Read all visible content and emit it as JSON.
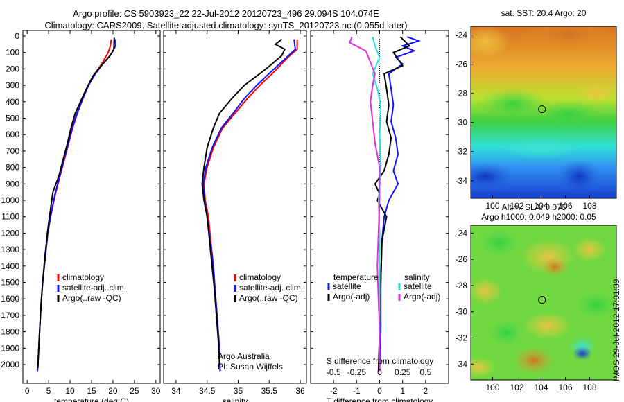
{
  "header": {
    "title_line1": "Argo profile: CS 5903923_22 22-Jul-2012 20120723_496 29.094S 104.074E",
    "title_line2": "Climatology: CARS2009. Satellite-adjusted climatology: synTS_20120723.nc (0.055d later)"
  },
  "colors": {
    "climatology": "#ff0000",
    "satellite": "#1010ff",
    "argo": "#000000",
    "salinity_satellite": "#22e0e0",
    "salinity_argo": "#e030e0"
  },
  "chart_data": [
    {
      "type": "line",
      "panel": "temperature",
      "xlabel": "temperature (deg C)",
      "ylabel": "",
      "xlim": [
        -1,
        31
      ],
      "ylim": [
        2080,
        0
      ],
      "xticks": [
        0,
        5,
        10,
        15,
        20,
        25,
        30
      ],
      "yticks": [
        0,
        100,
        200,
        300,
        400,
        500,
        600,
        700,
        800,
        900,
        1000,
        1100,
        1200,
        1300,
        1400,
        1500,
        1600,
        1700,
        1800,
        1900,
        2000
      ],
      "legend": [
        "climatology",
        "satellite-adj. clim.",
        "Argo(..raw -QC)"
      ],
      "series": [
        {
          "name": "climatology",
          "color": "#ff0000",
          "points": [
            [
              19.6,
              20
            ],
            [
              19.4,
              60
            ],
            [
              18.9,
              100
            ],
            [
              17.6,
              160
            ],
            [
              15.8,
              230
            ],
            [
              14.3,
              300
            ],
            [
              13.0,
              380
            ],
            [
              11.7,
              470
            ],
            [
              10.6,
              560
            ],
            [
              9.7,
              650
            ],
            [
              8.7,
              750
            ],
            [
              7.7,
              850
            ],
            [
              6.6,
              960
            ],
            [
              5.6,
              1080
            ],
            [
              4.8,
              1200
            ],
            [
              4.2,
              1350
            ],
            [
              3.6,
              1500
            ],
            [
              3.2,
              1650
            ],
            [
              2.9,
              1800
            ],
            [
              2.6,
              1950
            ],
            [
              2.4,
              2040
            ]
          ]
        },
        {
          "name": "satellite-adj. clim.",
          "color": "#1010ff",
          "points": [
            [
              20.5,
              20
            ],
            [
              20.6,
              60
            ],
            [
              19.6,
              110
            ],
            [
              17.6,
              170
            ],
            [
              15.8,
              235
            ],
            [
              14.3,
              300
            ],
            [
              13.0,
              380
            ],
            [
              11.6,
              470
            ],
            [
              10.5,
              560
            ],
            [
              9.6,
              650
            ],
            [
              8.6,
              750
            ],
            [
              7.6,
              850
            ],
            [
              6.5,
              960
            ],
            [
              5.6,
              1080
            ],
            [
              4.8,
              1200
            ],
            [
              4.2,
              1350
            ],
            [
              3.6,
              1500
            ],
            [
              3.2,
              1650
            ],
            [
              2.9,
              1800
            ],
            [
              2.6,
              1950
            ],
            [
              2.4,
              2040
            ]
          ]
        },
        {
          "name": "Argo(..raw -QC)",
          "color": "#000000",
          "points": [
            [
              20.3,
              10
            ],
            [
              20.2,
              80
            ],
            [
              19.3,
              120
            ],
            [
              17.3,
              180
            ],
            [
              15.4,
              240
            ],
            [
              14.0,
              310
            ],
            [
              12.6,
              390
            ],
            [
              11.2,
              470
            ],
            [
              10.2,
              560
            ],
            [
              9.4,
              650
            ],
            [
              8.4,
              750
            ],
            [
              7.4,
              850
            ],
            [
              6.0,
              950
            ],
            [
              5.3,
              1080
            ],
            [
              4.7,
              1200
            ],
            [
              4.1,
              1350
            ],
            [
              3.6,
              1500
            ],
            [
              3.2,
              1650
            ],
            [
              2.9,
              1800
            ],
            [
              2.6,
              1950
            ],
            [
              2.5,
              2020
            ]
          ]
        }
      ]
    },
    {
      "type": "line",
      "panel": "salinity",
      "xlabel": "salinity",
      "xlim": [
        33.8,
        36.1
      ],
      "ylim": [
        2080,
        0
      ],
      "xticks": [
        34,
        34.5,
        35,
        35.5,
        36
      ],
      "xticklabels": [
        "34",
        "34.5",
        "35",
        "35.5",
        "36"
      ],
      "legend": [
        "climatology",
        "satellite-adj. clim.",
        "Argo(..raw -QC)"
      ],
      "annotation": [
        "Argo Australia",
        "PI: Susan Wijffels"
      ],
      "series": [
        {
          "name": "climatology",
          "color": "#ff0000",
          "points": [
            [
              35.95,
              20
            ],
            [
              35.95,
              80
            ],
            [
              35.8,
              130
            ],
            [
              35.6,
              210
            ],
            [
              35.35,
              300
            ],
            [
              35.15,
              380
            ],
            [
              34.95,
              470
            ],
            [
              34.75,
              560
            ],
            [
              34.6,
              680
            ],
            [
              34.5,
              800
            ],
            [
              34.45,
              900
            ],
            [
              34.47,
              1000
            ],
            [
              34.52,
              1100
            ],
            [
              34.56,
              1250
            ],
            [
              34.6,
              1400
            ],
            [
              34.63,
              1550
            ],
            [
              34.66,
              1700
            ],
            [
              34.69,
              1850
            ],
            [
              34.71,
              2040
            ]
          ]
        },
        {
          "name": "satellite-adj. clim.",
          "color": "#1010ff",
          "points": [
            [
              35.9,
              20
            ],
            [
              35.92,
              80
            ],
            [
              35.75,
              140
            ],
            [
              35.55,
              210
            ],
            [
              35.3,
              300
            ],
            [
              35.1,
              380
            ],
            [
              34.92,
              470
            ],
            [
              34.73,
              560
            ],
            [
              34.58,
              680
            ],
            [
              34.48,
              800
            ],
            [
              34.44,
              900
            ],
            [
              34.46,
              1000
            ],
            [
              34.5,
              1100
            ],
            [
              34.55,
              1250
            ],
            [
              34.6,
              1400
            ],
            [
              34.63,
              1550
            ],
            [
              34.66,
              1700
            ],
            [
              34.69,
              1850
            ],
            [
              34.71,
              2040
            ]
          ]
        },
        {
          "name": "Argo(..raw -QC)",
          "color": "#000000",
          "points": [
            [
              35.7,
              20
            ],
            [
              35.6,
              50
            ],
            [
              35.75,
              80
            ],
            [
              35.7,
              120
            ],
            [
              35.45,
              200
            ],
            [
              35.1,
              300
            ],
            [
              34.9,
              380
            ],
            [
              34.7,
              470
            ],
            [
              34.6,
              560
            ],
            [
              34.5,
              680
            ],
            [
              34.45,
              800
            ],
            [
              34.42,
              900
            ],
            [
              34.45,
              1000
            ],
            [
              34.5,
              1100
            ],
            [
              34.54,
              1250
            ],
            [
              34.58,
              1400
            ],
            [
              34.62,
              1550
            ],
            [
              34.65,
              1700
            ],
            [
              34.68,
              1850
            ],
            [
              34.7,
              2000
            ]
          ]
        }
      ]
    },
    {
      "type": "line",
      "panel": "difference",
      "xlabel": "T difference from climatology",
      "xlabel_top": "S difference from climatology",
      "xlim": [
        -3,
        3
      ],
      "ylim": [
        2080,
        0
      ],
      "xticks": [
        -2,
        -1,
        0,
        1,
        2
      ],
      "top_xticklabels": [
        "-0.5",
        "-0.25",
        "0",
        "0.25",
        "0.5"
      ],
      "legend_temperature_title": "temperature",
      "legend_salinity_title": "salinity",
      "legend": [
        "satellite",
        "Argo(-adj)",
        "satellite",
        "Argo(-adj)"
      ],
      "series": [
        {
          "name": "temperature satellite",
          "color": "#1010ff",
          "points": [
            [
              1.2,
              5
            ],
            [
              1.7,
              30
            ],
            [
              1.0,
              60
            ],
            [
              1.5,
              90
            ],
            [
              0.7,
              130
            ],
            [
              1.0,
              170
            ],
            [
              0.4,
              230
            ],
            [
              0.5,
              320
            ],
            [
              0.6,
              420
            ],
            [
              0.5,
              520
            ],
            [
              0.7,
              620
            ],
            [
              0.8,
              720
            ],
            [
              0.6,
              820
            ],
            [
              0.8,
              900
            ],
            [
              0.4,
              1000
            ],
            [
              0.2,
              1100
            ],
            [
              0.1,
              1250
            ],
            [
              0.05,
              1500
            ],
            [
              0.05,
              1800
            ],
            [
              0.0,
              2040
            ]
          ]
        },
        {
          "name": "temperature Argo(-adj)",
          "color": "#000000",
          "points": [
            [
              0.9,
              5
            ],
            [
              1.3,
              60
            ],
            [
              0.6,
              100
            ],
            [
              1.0,
              180
            ],
            [
              0.2,
              230
            ],
            [
              0.3,
              320
            ],
            [
              0.4,
              420
            ],
            [
              0.3,
              520
            ],
            [
              0.5,
              620
            ],
            [
              0.4,
              720
            ],
            [
              0.2,
              820
            ],
            [
              -0.2,
              900
            ],
            [
              0.0,
              960
            ],
            [
              -0.1,
              1000
            ],
            [
              0.3,
              1100
            ],
            [
              0.1,
              1250
            ],
            [
              0.05,
              1500
            ],
            [
              0.0,
              1800
            ],
            [
              -0.05,
              2040
            ]
          ]
        },
        {
          "name": "salinity satellite",
          "color": "#22e0e0",
          "points": [
            [
              -0.3,
              5
            ],
            [
              -0.2,
              60
            ],
            [
              0.0,
              130
            ],
            [
              -0.3,
              230
            ],
            [
              -0.1,
              320
            ],
            [
              0.05,
              420
            ],
            [
              0.0,
              600
            ],
            [
              0.05,
              800
            ],
            [
              -0.05,
              1000
            ],
            [
              0.0,
              1200
            ],
            [
              0.0,
              1500
            ],
            [
              0.0,
              1800
            ],
            [
              0.0,
              2040
            ]
          ]
        },
        {
          "name": "salinity Argo(-adj)",
          "color": "#e030e0",
          "points": [
            [
              -1.2,
              5
            ],
            [
              -1.3,
              40
            ],
            [
              -0.6,
              90
            ],
            [
              -0.4,
              160
            ],
            [
              -0.2,
              230
            ],
            [
              -0.3,
              300
            ],
            [
              -0.4,
              400
            ],
            [
              -0.3,
              520
            ],
            [
              -0.2,
              650
            ],
            [
              0.0,
              800
            ],
            [
              0.0,
              1000
            ],
            [
              -0.05,
              1200
            ],
            [
              -0.1,
              1400
            ],
            [
              -0.05,
              1600
            ],
            [
              0.0,
              1800
            ],
            [
              0.0,
              2040
            ]
          ]
        }
      ]
    },
    {
      "type": "heatmap",
      "panel": "map_sst",
      "title": "sat. SST: 20.4  Argo: 20",
      "xlim": [
        98.2,
        110.2
      ],
      "ylim": [
        -35.2,
        -23.4
      ],
      "xticks": [
        100,
        102,
        104,
        106,
        108
      ],
      "yticks": [
        -24,
        -26,
        -28,
        -30,
        -32,
        -34
      ],
      "marker": {
        "lon": 104.07,
        "lat": -29.09
      }
    },
    {
      "type": "heatmap",
      "panel": "map_sla",
      "title_line1": "Altim. SLA: 0.076",
      "title_line2": "Argo h1000: 0.049 h2000: 0.05",
      "xlim": [
        98.2,
        110.2
      ],
      "ylim": [
        -35.2,
        -23.4
      ],
      "xticks": [
        100,
        102,
        104,
        106,
        108
      ],
      "yticks": [
        -24,
        -26,
        -28,
        -30,
        -32,
        -34
      ],
      "marker": {
        "lon": 104.07,
        "lat": -29.09
      }
    }
  ],
  "footer": {
    "stamp": "IMOS 29-Jul-2012 17:01:39"
  }
}
